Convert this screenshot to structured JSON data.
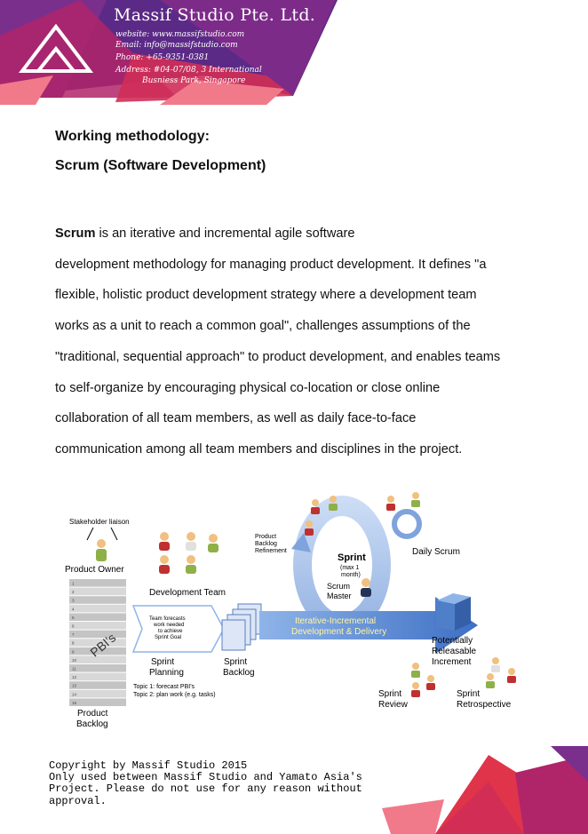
{
  "header": {
    "company_name": "Massif Studio Pte. Ltd.",
    "website": "website: www.massifstudio.com",
    "email": "Email: info@massifstudio.com",
    "phone": "Phone:  +65-9351-0381",
    "address_line1": "Address: #04-07/08, 3 International",
    "address_line2": "Busniess Park, Singapore",
    "colors": {
      "purple": "#5b2a86",
      "magenta": "#b0246a",
      "red": "#e0344a",
      "pink": "#f07a8a"
    },
    "logo_icon": "mountain-triangle-logo"
  },
  "headings": {
    "methodology": "Working methodology:",
    "scrum": "Scrum (Software Development)"
  },
  "paragraph": {
    "bold_term": "Scrum",
    "line1": " is an iterative and incremental agile software",
    "line2": "development methodology for managing product development. It defines \"a",
    "line3": "flexible, holistic product development strategy where a development team",
    "line4": "works as a unit to reach a common goal\", challenges assumptions of the",
    "line5": "\"traditional, sequential approach\" to product development, and enables teams",
    "line6": "to self-organize by encouraging physical co-location or close online",
    "line7": "collaboration of all team members, as well as daily face-to-face",
    "line8": "communication among all team members and disciplines in the project."
  },
  "diagram": {
    "stakeholder": "Stakeholder liaison",
    "product_owner": "Product Owner",
    "development_team": "Development Team",
    "pbis": "PBI's",
    "backlog_numbers": [
      "1",
      "2",
      "3",
      "4",
      "5",
      "6",
      "7",
      "8",
      "9",
      "10",
      "11",
      "12",
      "13",
      "14",
      "15"
    ],
    "forecast_line1": "Team forecasts",
    "forecast_line2": "work needed",
    "forecast_line3": "to achieve",
    "forecast_line4": "Sprint Goal",
    "sprint_planning_1": "Sprint",
    "sprint_planning_2": "Planning",
    "sprint_backlog_1": "Sprint",
    "sprint_backlog_2": "Backlog",
    "topic1": "Topic 1: forecast PBI's",
    "topic2": "Topic 2: plan work (e.g. tasks)",
    "product_backlog_1": "Product",
    "product_backlog_2": "Backlog",
    "refinement_1": "Product",
    "refinement_2": "Backlog",
    "refinement_3": "Refinement",
    "sprint": "Sprint",
    "sprint_max_1": "(max 1",
    "sprint_max_2": "month)",
    "scrum_master_1": "Scrum",
    "scrum_master_2": "Master",
    "daily_scrum": "Daily Scrum",
    "iterative_1": "Iterative-Incremental",
    "iterative_2": "Development & Delivery",
    "increment_1": "Potentially",
    "increment_2": "Releasable",
    "increment_3": "Increment",
    "review_1": "Sprint",
    "review_2": "Review",
    "retro_1": "Sprint",
    "retro_2": "Retrospective"
  },
  "footer": {
    "line1": "Copyright by Massif Studio 2015",
    "line2": "Only used between Massif Studio and Yamato Asia's",
    "line3": "Project. Please do not use for any reason without",
    "line4": "approval."
  }
}
